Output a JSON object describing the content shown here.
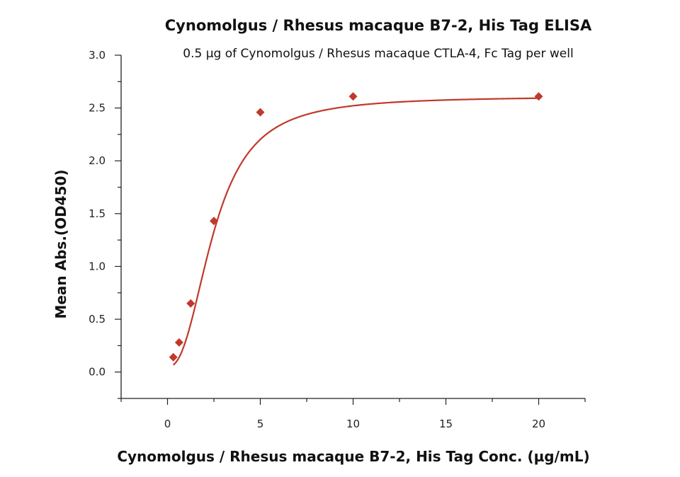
{
  "chart_data": {
    "type": "scatter",
    "title": "Cynomolgus / Rhesus macaque B7-2, His Tag ELISA",
    "subtitle": "0.5 µg of Cynomolgus / Rhesus macaque CTLA-4, Fc Tag per well",
    "xlabel": "Cynomolgus / Rhesus macaque B7-2, His Tag Conc. (µg/mL)",
    "ylabel": "Mean Abs.(OD450)",
    "xlim": [
      -2.5,
      22.5
    ],
    "ylim": [
      -0.25,
      3.0
    ],
    "x_ticks": [
      0,
      5,
      10,
      15,
      20
    ],
    "y_ticks": [
      0.0,
      0.5,
      1.0,
      1.5,
      2.0,
      2.5,
      3.0
    ],
    "x_tick_labels": [
      "0",
      "5",
      "10",
      "15",
      "20"
    ],
    "y_tick_labels": [
      "0.0",
      "0.5",
      "1.0",
      "1.5",
      "2.0",
      "2.5",
      "3.0"
    ],
    "grid": false,
    "series": [
      {
        "marker": "diamond",
        "color": "#c0392b",
        "x": [
          0.3125,
          0.625,
          1.25,
          2.5,
          5,
          10,
          20
        ],
        "y": [
          0.14,
          0.28,
          0.65,
          1.43,
          2.46,
          2.61,
          2.61
        ]
      }
    ],
    "fit_curve": {
      "model": "4PL",
      "color": "#c0392b",
      "bottom": 0.05,
      "top": 2.61,
      "ec50": 2.5,
      "hill": 2.4
    }
  }
}
